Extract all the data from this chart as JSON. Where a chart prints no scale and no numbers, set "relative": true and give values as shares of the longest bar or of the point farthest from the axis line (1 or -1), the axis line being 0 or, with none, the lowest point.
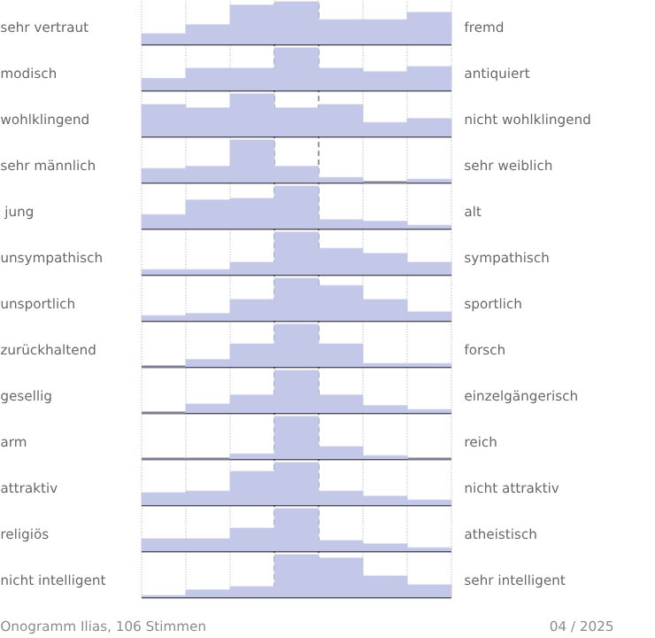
{
  "chart_data": [
    {
      "type": "bar",
      "relative": true,
      "grid": "x",
      "color": "#c3c8e8",
      "ylabel": "sehr vertraut",
      "y2label": "fremd",
      "categories": [
        null,
        null,
        null,
        null,
        null,
        null,
        null
      ],
      "values": [
        0.25,
        0.46,
        0.92,
        1,
        0.58,
        0.58,
        0.75
      ]
    },
    {
      "type": "bar",
      "relative": true,
      "grid": "x",
      "color": "#c3c8e8",
      "ylabel": "modisch",
      "y2label": "antiquiert",
      "categories": [
        null,
        null,
        null,
        null,
        null,
        null,
        null
      ],
      "values": [
        0.28,
        0.52,
        0.52,
        1,
        0.52,
        0.44,
        0.56
      ]
    },
    {
      "type": "bar",
      "relative": true,
      "grid": "x",
      "color": "#c3c8e8",
      "ylabel": "wohlklingend",
      "y2label": "nicht wohlklingend",
      "categories": [
        null,
        null,
        null,
        null,
        null,
        null,
        null
      ],
      "values": [
        0.75,
        0.67,
        1,
        0.67,
        0.75,
        0.33,
        0.42
      ]
    },
    {
      "type": "bar",
      "relative": true,
      "grid": "x",
      "color": "#c3c8e8",
      "ylabel": "sehr männlich",
      "y2label": "sehr weiblich",
      "categories": [
        null,
        null,
        null,
        null,
        null,
        null,
        null
      ],
      "values": [
        0.33,
        0.38,
        1,
        0.38,
        0.12,
        0,
        0.08
      ]
    },
    {
      "type": "bar",
      "relative": true,
      "grid": "x",
      "color": "#c3c8e8",
      "ylabel": " jung",
      "y2label": "alt",
      "categories": [
        null,
        null,
        null,
        null,
        null,
        null,
        null
      ],
      "values": [
        0.33,
        0.67,
        0.71,
        1,
        0.21,
        0.17,
        0.08
      ]
    },
    {
      "type": "bar",
      "relative": true,
      "grid": "x",
      "color": "#c3c8e8",
      "ylabel": "unsympathisch",
      "y2label": "sympathisch",
      "categories": [
        null,
        null,
        null,
        null,
        null,
        null,
        null
      ],
      "values": [
        0.12,
        0.12,
        0.29,
        1,
        0.62,
        0.5,
        0.29
      ]
    },
    {
      "type": "bar",
      "relative": true,
      "grid": "x",
      "color": "#c3c8e8",
      "ylabel": "unsportlich",
      "y2label": "sportlich",
      "categories": [
        null,
        null,
        null,
        null,
        null,
        null,
        null
      ],
      "values": [
        0.12,
        0.17,
        0.5,
        1,
        0.83,
        0.5,
        0.21
      ]
    },
    {
      "type": "bar",
      "relative": true,
      "grid": "x",
      "color": "#c3c8e8",
      "ylabel": "zurückhaltend",
      "y2label": "forsch",
      "categories": [
        null,
        null,
        null,
        null,
        null,
        null,
        null
      ],
      "values": [
        0,
        0.17,
        0.54,
        1,
        0.54,
        0.08,
        0.08
      ]
    },
    {
      "type": "bar",
      "relative": true,
      "grid": "x",
      "color": "#c3c8e8",
      "ylabel": "gesellig",
      "y2label": "einzelgängerisch",
      "categories": [
        null,
        null,
        null,
        null,
        null,
        null,
        null
      ],
      "values": [
        0,
        0.21,
        0.42,
        1,
        0.42,
        0.17,
        0.08
      ]
    },
    {
      "type": "bar",
      "relative": true,
      "grid": "x",
      "color": "#c3c8e8",
      "ylabel": "arm",
      "y2label": "reich",
      "categories": [
        null,
        null,
        null,
        null,
        null,
        null,
        null
      ],
      "values": [
        0,
        0,
        0.12,
        1,
        0.29,
        0.08,
        0
      ]
    },
    {
      "type": "bar",
      "relative": true,
      "grid": "x",
      "color": "#c3c8e8",
      "ylabel": "attraktiv",
      "y2label": "nicht attraktiv",
      "categories": [
        null,
        null,
        null,
        null,
        null,
        null,
        null
      ],
      "values": [
        0.29,
        0.33,
        0.79,
        1,
        0.33,
        0.21,
        0.12
      ]
    },
    {
      "type": "bar",
      "relative": true,
      "grid": "x",
      "color": "#c3c8e8",
      "ylabel": "religiös",
      "y2label": "atheistisch",
      "categories": [
        null,
        null,
        null,
        null,
        null,
        null,
        null
      ],
      "values": [
        0.29,
        0.29,
        0.54,
        1,
        0.25,
        0.17,
        0.08
      ]
    },
    {
      "type": "bar",
      "relative": true,
      "grid": "x",
      "color": "#c3c8e8",
      "ylabel": "nicht intelligent",
      "y2label": "sehr intelligent",
      "categories": [
        null,
        null,
        null,
        null,
        null,
        null,
        null
      ],
      "values": [
        0.04,
        0.17,
        0.25,
        1,
        0.92,
        0.5,
        0.29
      ],
      "annotations": [
        "Onogramm Ilias, 106 Stimmen",
        "04 / 2025"
      ]
    }
  ]
}
